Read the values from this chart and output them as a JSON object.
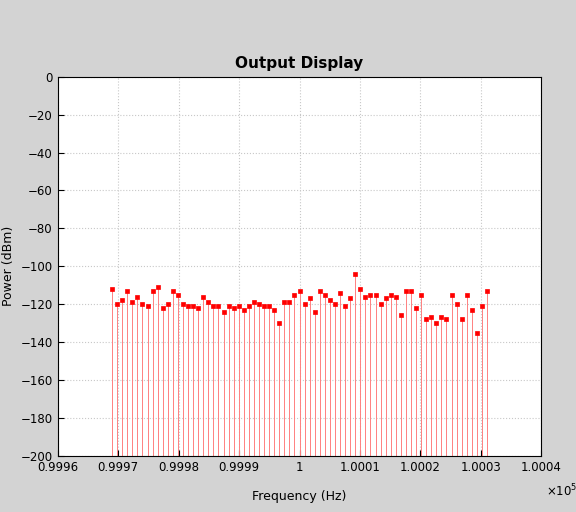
{
  "title": "Output Display",
  "xlabel": "Frequency (Hz)",
  "ylabel": "Power (dBm)",
  "xlim": [
    99960,
    100040
  ],
  "ylim": [
    -200,
    0
  ],
  "yticks": [
    0,
    -20,
    -40,
    -60,
    -80,
    -100,
    -120,
    -140,
    -160,
    -180,
    -200
  ],
  "xtick_values": [
    99960,
    99970,
    99980,
    99990,
    100000,
    100010,
    100020,
    100030,
    100040
  ],
  "xtick_labels": [
    "0.9996",
    "0.9997",
    "0.9998",
    "0.9999",
    "1",
    "1.0001",
    "1.0002",
    "1.0003",
    "1.0004"
  ],
  "line_color": "#FF8080",
  "marker_color": "#FF0000",
  "background_color": "#D3D3D3",
  "plot_bg_color": "#FFFFFF",
  "grid_color": "#C8C8C8",
  "title_fontsize": 11,
  "label_fontsize": 9,
  "tick_fontsize": 8.5,
  "n_lines": 75,
  "freq_start": 99969,
  "freq_end": 100031,
  "base_power": -200,
  "powers": [
    -112,
    -120,
    -118,
    -113,
    -119,
    -116,
    -120,
    -121,
    -113,
    -111,
    -122,
    -120,
    -113,
    -115,
    -120,
    -121,
    -121,
    -122,
    -116,
    -119,
    -121,
    -121,
    -124,
    -121,
    -122,
    -121,
    -123,
    -121,
    -119,
    -120,
    -121,
    -121,
    -123,
    -130,
    -119,
    -119,
    -115,
    -113,
    -120,
    -117,
    -124,
    -113,
    -115,
    -118,
    -120,
    -114,
    -121,
    -117,
    -104,
    -112,
    -116,
    -115,
    -115,
    -120,
    -117,
    -115,
    -116,
    -126,
    -113,
    -113,
    -122,
    -115,
    -128,
    -127,
    -130,
    -127,
    -128,
    -115,
    -120,
    -128,
    -115,
    -123,
    -135,
    -121,
    -113
  ]
}
